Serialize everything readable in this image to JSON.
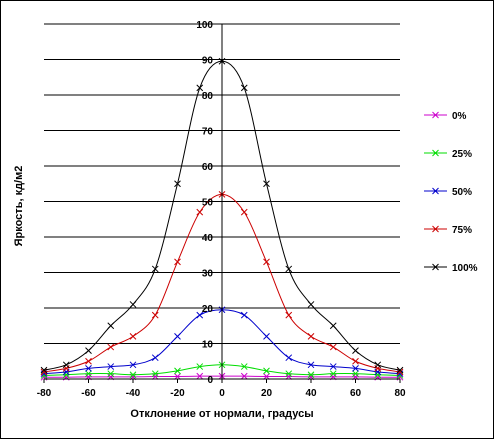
{
  "chart_data": {
    "type": "line",
    "title": "",
    "xlabel": "Отклонение от нормали, градусы",
    "ylabel": "Яркость, кд/м2",
    "xlim": [
      -80,
      80
    ],
    "ylim": [
      0,
      100
    ],
    "x_ticks": [
      -80,
      -60,
      -40,
      -20,
      0,
      20,
      40,
      60,
      80
    ],
    "y_ticks": [
      0,
      10,
      20,
      30,
      40,
      50,
      60,
      70,
      80,
      90,
      100
    ],
    "y_grid": true,
    "legend_position": "right",
    "series": [
      {
        "name": "0%",
        "color": "#cc00cc",
        "x": [
          -80,
          -70,
          -60,
          -50,
          -40,
          -30,
          -20,
          -10,
          0,
          10,
          20,
          30,
          40,
          50,
          60,
          70,
          80
        ],
        "y": [
          0.5,
          0.5,
          0.6,
          0.6,
          0.6,
          0.7,
          0.7,
          0.8,
          0.8,
          0.8,
          0.7,
          0.7,
          0.6,
          0.6,
          0.6,
          0.5,
          0.5
        ]
      },
      {
        "name": "25%",
        "color": "#00dd00",
        "x": [
          -80,
          -70,
          -60,
          -50,
          -40,
          -30,
          -20,
          -10,
          0,
          10,
          20,
          30,
          40,
          50,
          60,
          70,
          80
        ],
        "y": [
          1.0,
          1.2,
          1.5,
          1.5,
          1.2,
          1.5,
          2.3,
          3.5,
          4.0,
          3.5,
          2.3,
          1.5,
          1.2,
          1.5,
          1.5,
          1.2,
          1.0
        ]
      },
      {
        "name": "50%",
        "color": "#0000cc",
        "x": [
          -80,
          -70,
          -60,
          -50,
          -40,
          -30,
          -20,
          -10,
          0,
          10,
          20,
          30,
          40,
          50,
          60,
          70,
          80
        ],
        "y": [
          1.5,
          2.0,
          3.0,
          3.5,
          4.0,
          6.0,
          12.0,
          18.0,
          19.5,
          18.0,
          12.0,
          6.0,
          4.0,
          3.5,
          3.0,
          2.0,
          1.5
        ]
      },
      {
        "name": "75%",
        "color": "#cc0000",
        "x": [
          -80,
          -70,
          -60,
          -50,
          -40,
          -30,
          -20,
          -10,
          0,
          10,
          20,
          30,
          40,
          50,
          60,
          70,
          80
        ],
        "y": [
          2.0,
          3.0,
          5.0,
          9.0,
          12.0,
          18.0,
          33.0,
          47.0,
          52.0,
          47.0,
          33.0,
          18.0,
          12.0,
          9.0,
          5.0,
          3.0,
          2.0
        ]
      },
      {
        "name": "100%",
        "color": "#000000",
        "x": [
          -80,
          -70,
          -60,
          -50,
          -40,
          -30,
          -20,
          -10,
          0,
          10,
          20,
          30,
          40,
          50,
          60,
          70,
          80
        ],
        "y": [
          2.5,
          4.0,
          8.0,
          15.0,
          21.0,
          31.0,
          55.0,
          82.0,
          89.5,
          82.0,
          55.0,
          31.0,
          21.0,
          15.0,
          8.0,
          4.0,
          2.5
        ]
      }
    ]
  }
}
